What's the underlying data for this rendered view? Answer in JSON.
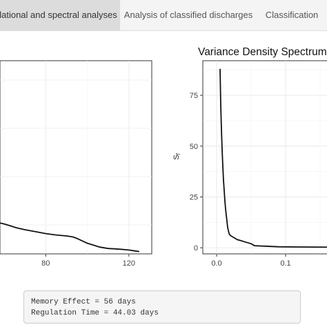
{
  "tabs": [
    {
      "label": "elational and spectral analyses",
      "active": true
    },
    {
      "label": "Analysis of classified discharges",
      "active": false
    },
    {
      "label": "Classification",
      "active": false
    }
  ],
  "chart_data": [
    {
      "type": "line",
      "title": "",
      "xlabel": "",
      "ylabel": "",
      "x_ticks": [
        80,
        120
      ],
      "xlim": [
        58,
        131
      ],
      "ylim": [
        0,
        1
      ],
      "grid": true,
      "series": [
        {
          "x": [
            58,
            60,
            63,
            66,
            70,
            75,
            80,
            85,
            90,
            93,
            95,
            98,
            100,
            103,
            106,
            110,
            113,
            116,
            120,
            123,
            125
          ],
          "y": [
            0.16,
            0.155,
            0.145,
            0.135,
            0.125,
            0.115,
            0.105,
            0.098,
            0.093,
            0.088,
            0.08,
            0.065,
            0.055,
            0.045,
            0.035,
            0.028,
            0.026,
            0.024,
            0.02,
            0.015,
            0.012
          ]
        }
      ]
    },
    {
      "type": "line",
      "title": "Variance Density Spectrum",
      "xlabel": "",
      "ylabel": "Sf",
      "ylabel_main": "S",
      "ylabel_sub": "f",
      "y_ticks": [
        0,
        25,
        50,
        75
      ],
      "x_ticks": [
        0.0,
        0.1
      ],
      "xlim": [
        -0.02,
        0.17
      ],
      "ylim": [
        -3,
        92
      ],
      "grid": true,
      "series": [
        {
          "x": [
            0.005,
            0.006,
            0.007,
            0.008,
            0.009,
            0.01,
            0.011,
            0.012,
            0.013,
            0.014,
            0.015,
            0.016,
            0.018,
            0.02,
            0.025,
            0.03,
            0.035,
            0.04,
            0.045,
            0.05,
            0.055,
            0.07,
            0.09,
            0.12,
            0.17
          ],
          "y": [
            88,
            70,
            58,
            48,
            40,
            33,
            28,
            23,
            19,
            16,
            13,
            10,
            7,
            6,
            5,
            4,
            3.5,
            3,
            2.5,
            2,
            1,
            0.8,
            0.5,
            0.4,
            0.3
          ]
        }
      ]
    }
  ],
  "results": {
    "memory_effect": "Memory Effect = 56 days",
    "regulation_time": "Regulation Time = 44.03 days"
  }
}
